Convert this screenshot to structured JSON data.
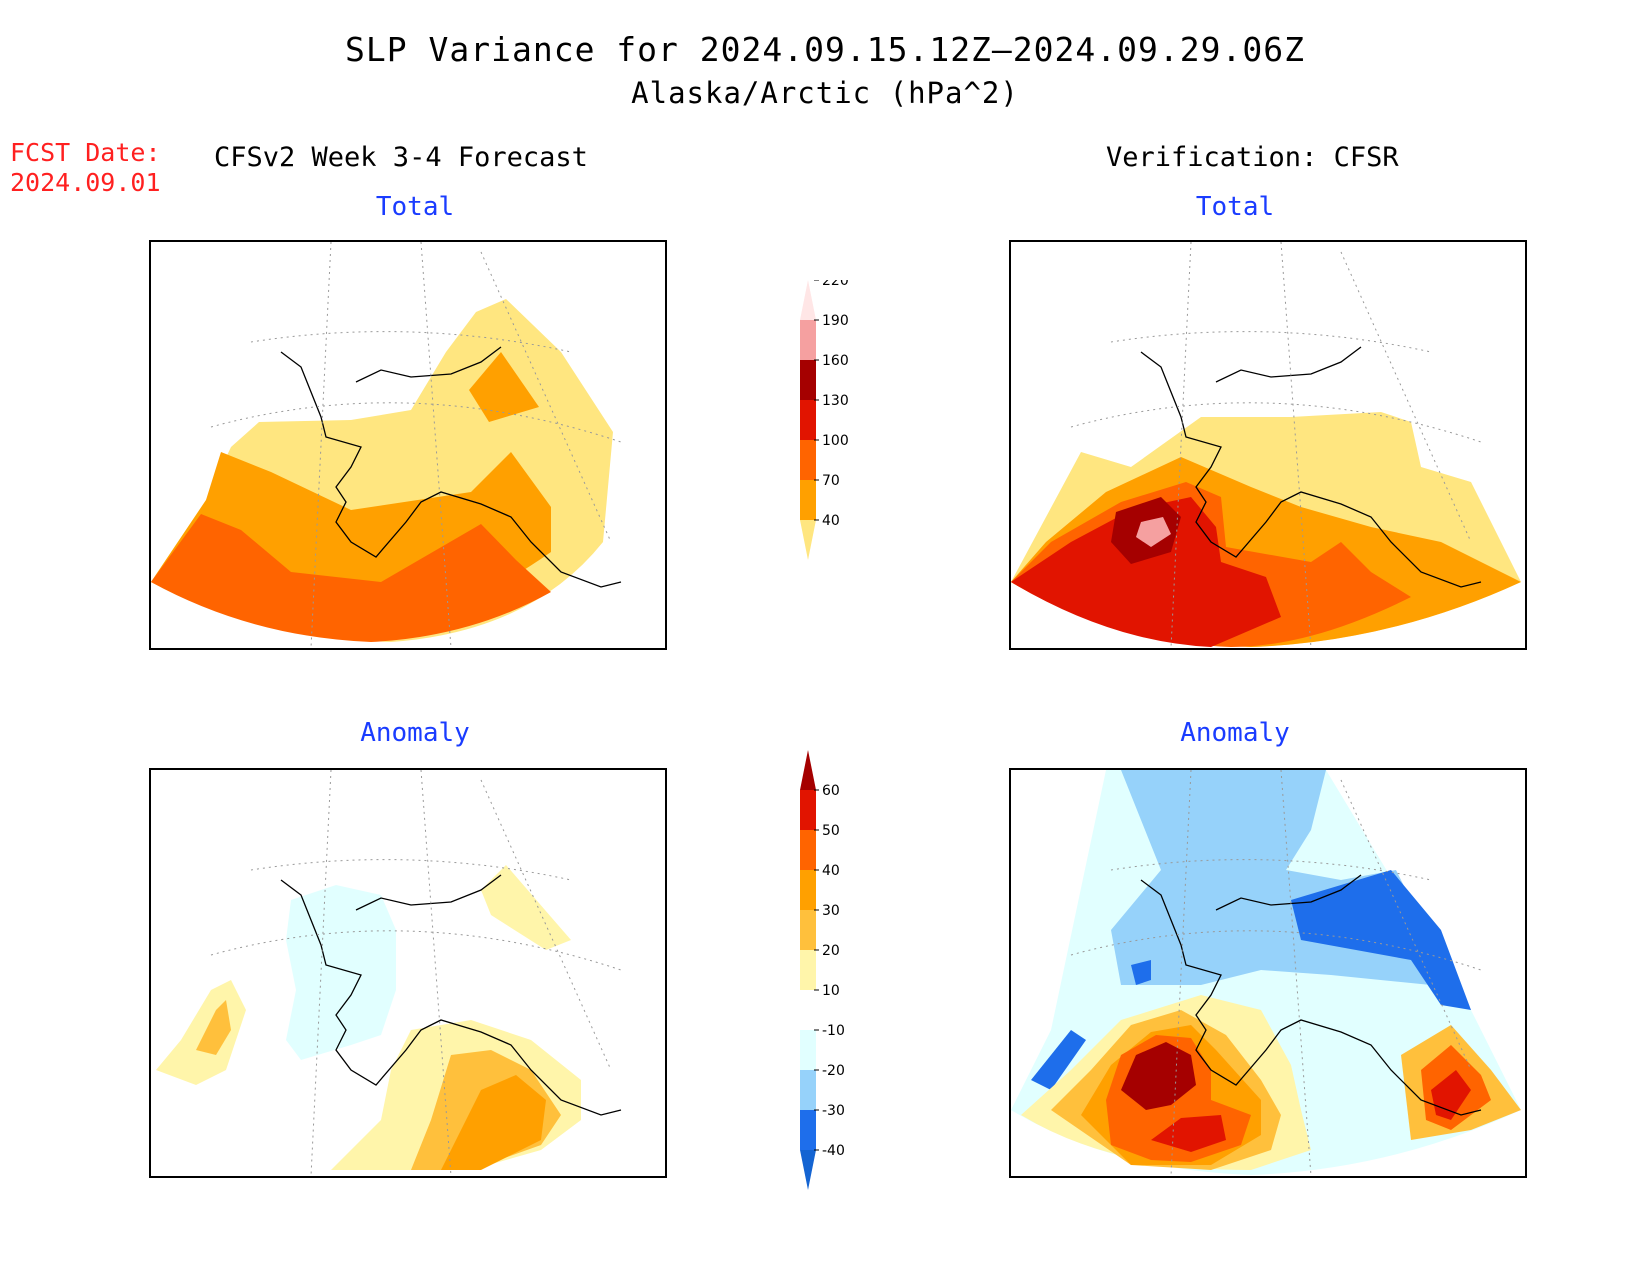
{
  "header": {
    "title": "SLP Variance for 2024.09.15.12Z—2024.09.29.06Z",
    "subtitle": "Alaska/Arctic (hPa^2)",
    "fcst_date_label": "FCST Date:",
    "fcst_date_value": "2024.09.01"
  },
  "columns": {
    "left": "CFSv2 Week 3-4 Forecast",
    "right": "Verification: CFSR"
  },
  "panels": {
    "fcst_total": "Total",
    "verif_total": "Total",
    "fcst_anomaly": "Anomaly",
    "verif_anomaly": "Anomaly"
  },
  "total_colorbar": {
    "levels": [
      "40",
      "70",
      "100",
      "130",
      "160",
      "190",
      "220"
    ],
    "colors": [
      "#ffe680",
      "#ffa000",
      "#ff6400",
      "#e11400",
      "#a50000",
      "#f5a0a0",
      "#ffe6e6"
    ]
  },
  "anomaly_colorbar": {
    "levels": [
      "-40",
      "-30",
      "-20",
      "-10",
      "10",
      "20",
      "30",
      "40",
      "50",
      "60"
    ],
    "colors": [
      "#1464d2",
      "#1e6eeb",
      "#96d2fa",
      "#e1ffff",
      "#ffffff",
      "#fff5aa",
      "#ffc03c",
      "#ffa000",
      "#ff6400",
      "#e11400",
      "#a50000"
    ]
  }
}
